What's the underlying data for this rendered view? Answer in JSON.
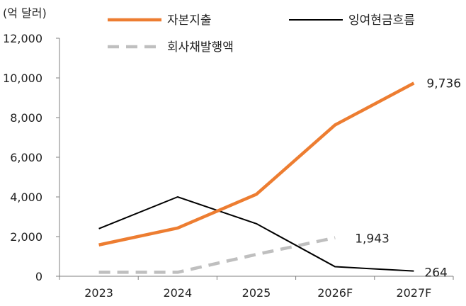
{
  "chart_data": {
    "type": "line",
    "unit_label": "(억 달러)",
    "categories": [
      "2023",
      "2024",
      "2025",
      "2026F",
      "2027F"
    ],
    "ylim": [
      0,
      12000
    ],
    "yticks": [
      0,
      2000,
      4000,
      6000,
      8000,
      10000,
      12000
    ],
    "ytick_labels": [
      "0",
      "2,000",
      "4,000",
      "6,000",
      "8,000",
      "10,000",
      "12,000"
    ],
    "grid": false,
    "legend_position": "top",
    "series": [
      {
        "name": "자본지출",
        "values": [
          1580,
          2430,
          4130,
          7630,
          9736
        ],
        "color": "#ED7D31",
        "style": "solid-thick"
      },
      {
        "name": "잉여현금흐름",
        "values": [
          2400,
          4000,
          2650,
          480,
          264
        ],
        "color": "#000000",
        "style": "solid-thin"
      },
      {
        "name": "회사채발행액",
        "values": [
          200,
          200,
          1100,
          1943,
          null
        ],
        "color": "#BFBFBF",
        "style": "dashed"
      }
    ],
    "annotations": [
      {
        "text": "9,736",
        "series": 0,
        "index": 4
      },
      {
        "text": "1,943",
        "series": 2,
        "index": 3
      },
      {
        "text": "264",
        "series": 1,
        "index": 4
      }
    ]
  }
}
